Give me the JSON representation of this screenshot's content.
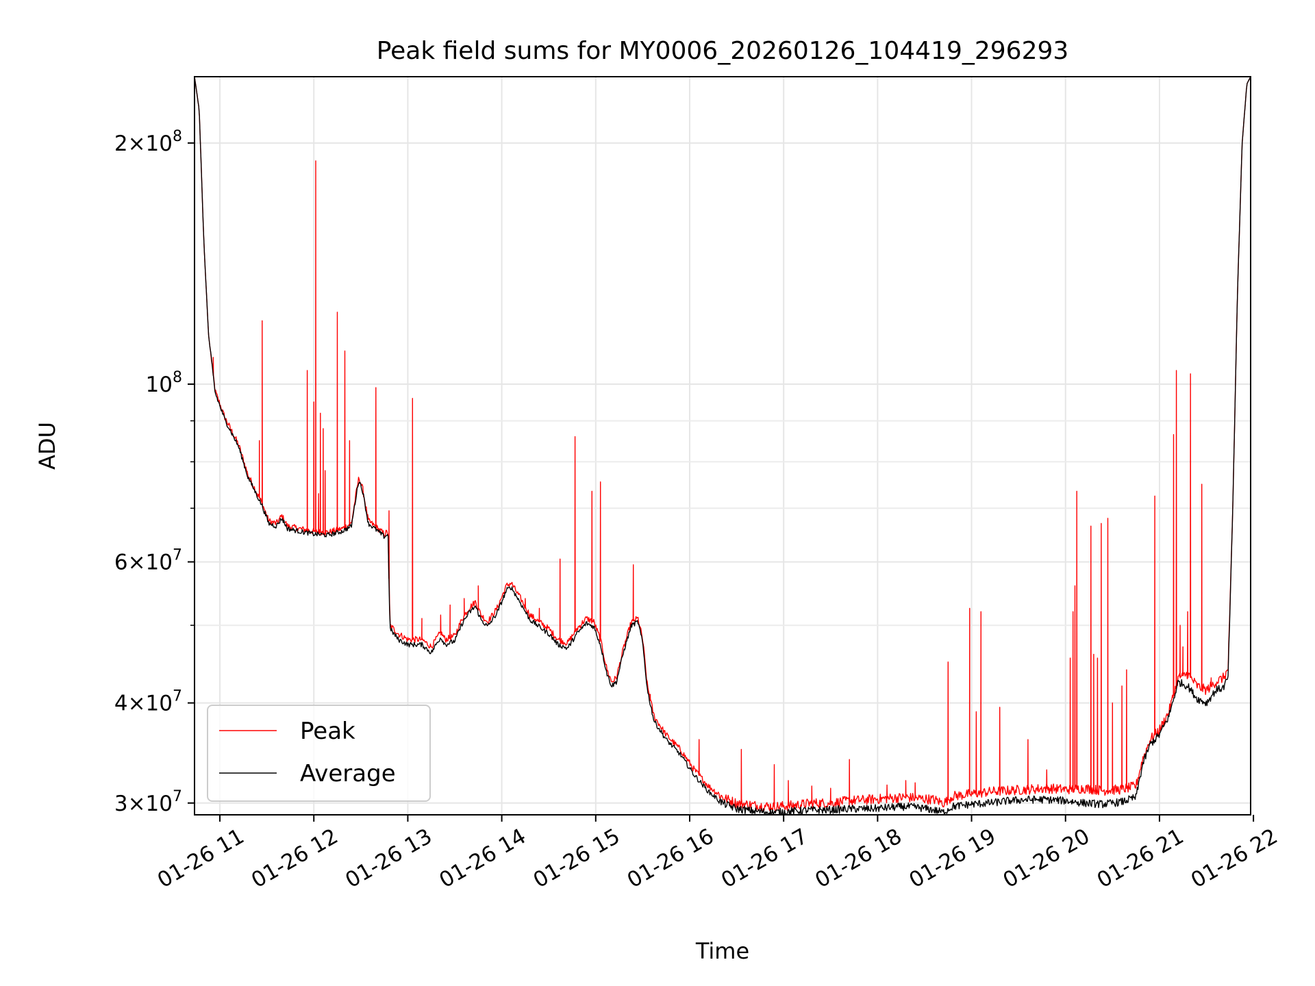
{
  "chart_data": {
    "type": "line",
    "title": "Peak field sums for MY0006_20260126_104419_296293",
    "xlabel": "Time",
    "ylabel": "ADU",
    "yscale": "log",
    "xlim": [
      10.73,
      21.97
    ],
    "ylim": [
      29000000,
      242000000
    ],
    "grid": true,
    "legend_position": "lower-left",
    "x_ticks": [
      {
        "value": 11,
        "label": "01-26 11"
      },
      {
        "value": 12,
        "label": "01-26 12"
      },
      {
        "value": 13,
        "label": "01-26 13"
      },
      {
        "value": 14,
        "label": "01-26 14"
      },
      {
        "value": 15,
        "label": "01-26 15"
      },
      {
        "value": 16,
        "label": "01-26 16"
      },
      {
        "value": 17,
        "label": "01-26 17"
      },
      {
        "value": 18,
        "label": "01-26 18"
      },
      {
        "value": 19,
        "label": "01-26 19"
      },
      {
        "value": 20,
        "label": "01-26 20"
      },
      {
        "value": 21,
        "label": "01-26 21"
      },
      {
        "value": 22,
        "label": "01-26 22"
      }
    ],
    "y_ticks": [
      {
        "value": 30000000,
        "mant": "3",
        "exp": "7"
      },
      {
        "value": 40000000,
        "mant": "4",
        "exp": "7"
      },
      {
        "value": 60000000,
        "mant": "6",
        "exp": "7"
      },
      {
        "value": 100000000,
        "mant": "",
        "exp": "8"
      },
      {
        "value": 200000000,
        "mant": "2",
        "exp": "8"
      }
    ],
    "y_minor_ticks": [
      50000000,
      70000000,
      80000000,
      90000000
    ],
    "series": [
      {
        "name": "Peak",
        "color": "#ff0000",
        "baseline": [
          [
            10.73,
            242000000
          ],
          [
            10.78,
            220000000
          ],
          [
            10.83,
            150000000
          ],
          [
            10.88,
            115000000
          ],
          [
            10.95,
            98000000
          ],
          [
            11.05,
            91000000
          ],
          [
            11.2,
            84000000
          ],
          [
            11.3,
            77000000
          ],
          [
            11.45,
            71000000
          ],
          [
            11.52,
            67500000
          ],
          [
            11.6,
            67000000
          ],
          [
            11.66,
            68500000
          ],
          [
            11.72,
            66500000
          ],
          [
            11.85,
            66000000
          ],
          [
            12.0,
            65500000
          ],
          [
            12.15,
            65300000
          ],
          [
            12.3,
            66000000
          ],
          [
            12.4,
            67000000
          ],
          [
            12.45,
            73000000
          ],
          [
            12.48,
            76500000
          ],
          [
            12.52,
            74000000
          ],
          [
            12.58,
            67500000
          ],
          [
            12.65,
            66500000
          ],
          [
            12.75,
            65000000
          ],
          [
            12.79,
            65500000
          ],
          [
            12.81,
            50000000
          ],
          [
            12.9,
            48800000
          ],
          [
            13.0,
            48000000
          ],
          [
            13.15,
            48000000
          ],
          [
            13.25,
            47000000
          ],
          [
            13.3,
            48000000
          ],
          [
            13.35,
            49000000
          ],
          [
            13.4,
            48000000
          ],
          [
            13.5,
            48500000
          ],
          [
            13.58,
            51000000
          ],
          [
            13.65,
            52500000
          ],
          [
            13.72,
            53500000
          ],
          [
            13.78,
            51500000
          ],
          [
            13.85,
            50500000
          ],
          [
            13.95,
            52500000
          ],
          [
            14.05,
            56000000
          ],
          [
            14.1,
            56500000
          ],
          [
            14.2,
            54000000
          ],
          [
            14.3,
            51500000
          ],
          [
            14.4,
            50500000
          ],
          [
            14.5,
            49500000
          ],
          [
            14.6,
            48000000
          ],
          [
            14.7,
            47500000
          ],
          [
            14.8,
            49500000
          ],
          [
            14.9,
            51000000
          ],
          [
            14.98,
            50500000
          ],
          [
            15.05,
            48000000
          ],
          [
            15.12,
            44000000
          ],
          [
            15.17,
            42500000
          ],
          [
            15.22,
            43000000
          ],
          [
            15.3,
            47000000
          ],
          [
            15.38,
            50500000
          ],
          [
            15.45,
            51000000
          ],
          [
            15.5,
            48000000
          ],
          [
            15.55,
            42000000
          ],
          [
            15.62,
            38500000
          ],
          [
            15.75,
            36500000
          ],
          [
            15.9,
            35000000
          ],
          [
            16.05,
            33000000
          ],
          [
            16.2,
            31500000
          ],
          [
            16.35,
            30500000
          ],
          [
            16.5,
            30000000
          ],
          [
            16.7,
            29800000
          ],
          [
            16.9,
            29700000
          ],
          [
            17.1,
            29800000
          ],
          [
            17.3,
            30000000
          ],
          [
            17.5,
            30000000
          ],
          [
            17.7,
            30200000
          ],
          [
            17.9,
            30300000
          ],
          [
            18.1,
            30400000
          ],
          [
            18.3,
            30500000
          ],
          [
            18.45,
            30400000
          ],
          [
            18.6,
            30300000
          ],
          [
            18.7,
            30000000
          ],
          [
            18.8,
            30600000
          ],
          [
            19.0,
            30800000
          ],
          [
            19.2,
            31000000
          ],
          [
            19.4,
            31100000
          ],
          [
            19.6,
            31200000
          ],
          [
            19.8,
            31300000
          ],
          [
            20.0,
            31200000
          ],
          [
            20.2,
            31300000
          ],
          [
            20.4,
            31100000
          ],
          [
            20.6,
            31200000
          ],
          [
            20.75,
            31500000
          ],
          [
            20.82,
            34000000
          ],
          [
            20.9,
            36000000
          ],
          [
            21.0,
            37000000
          ],
          [
            21.1,
            39000000
          ],
          [
            21.2,
            43000000
          ],
          [
            21.3,
            43500000
          ],
          [
            21.4,
            42000000
          ],
          [
            21.5,
            41500000
          ],
          [
            21.6,
            42500000
          ],
          [
            21.68,
            43000000
          ],
          [
            21.73,
            44000000
          ],
          [
            21.78,
            70000000
          ],
          [
            21.83,
            130000000
          ],
          [
            21.88,
            200000000
          ],
          [
            21.93,
            237000000
          ],
          [
            21.97,
            242000000
          ]
        ],
        "spikes": [
          [
            10.93,
            108000000
          ],
          [
            11.42,
            85000000
          ],
          [
            11.45,
            120000000
          ],
          [
            11.93,
            104000000
          ],
          [
            12.0,
            95000000
          ],
          [
            12.02,
            190000000
          ],
          [
            12.05,
            73000000
          ],
          [
            12.07,
            92000000
          ],
          [
            12.1,
            88000000
          ],
          [
            12.12,
            78000000
          ],
          [
            12.25,
            123000000
          ],
          [
            12.33,
            110000000
          ],
          [
            12.38,
            85000000
          ],
          [
            12.66,
            99000000
          ],
          [
            12.8,
            69500000
          ],
          [
            13.05,
            96000000
          ],
          [
            13.15,
            51000000
          ],
          [
            13.35,
            51500000
          ],
          [
            13.45,
            53000000
          ],
          [
            13.6,
            54000000
          ],
          [
            13.75,
            56000000
          ],
          [
            14.25,
            54000000
          ],
          [
            14.4,
            52500000
          ],
          [
            14.62,
            60500000
          ],
          [
            14.78,
            86000000
          ],
          [
            14.96,
            73500000
          ],
          [
            15.05,
            75500000
          ],
          [
            15.4,
            59500000
          ],
          [
            15.58,
            41000000
          ],
          [
            16.1,
            36000000
          ],
          [
            16.55,
            35000000
          ],
          [
            16.9,
            33500000
          ],
          [
            17.05,
            32000000
          ],
          [
            17.3,
            31500000
          ],
          [
            17.5,
            31300000
          ],
          [
            17.7,
            34000000
          ],
          [
            18.1,
            31600000
          ],
          [
            18.3,
            32000000
          ],
          [
            18.4,
            31800000
          ],
          [
            18.75,
            45000000
          ],
          [
            18.98,
            52500000
          ],
          [
            19.05,
            39000000
          ],
          [
            19.1,
            52000000
          ],
          [
            19.3,
            39500000
          ],
          [
            19.6,
            36000000
          ],
          [
            19.8,
            33000000
          ],
          [
            20.05,
            45500000
          ],
          [
            20.08,
            52000000
          ],
          [
            20.1,
            56000000
          ],
          [
            20.12,
            73500000
          ],
          [
            20.27,
            66500000
          ],
          [
            20.3,
            46000000
          ],
          [
            20.34,
            45500000
          ],
          [
            20.38,
            67000000
          ],
          [
            20.45,
            68000000
          ],
          [
            20.5,
            40000000
          ],
          [
            20.6,
            42000000
          ],
          [
            20.65,
            44000000
          ],
          [
            20.95,
            72500000
          ],
          [
            21.15,
            86500000
          ],
          [
            21.18,
            104000000
          ],
          [
            21.22,
            50000000
          ],
          [
            21.25,
            47000000
          ],
          [
            21.3,
            52000000
          ],
          [
            21.33,
            103000000
          ],
          [
            21.45,
            75000000
          ],
          [
            21.55,
            43000000
          ]
        ]
      },
      {
        "name": "Average",
        "color": "#000000",
        "baseline": [
          [
            10.73,
            242000000
          ],
          [
            10.78,
            220000000
          ],
          [
            10.83,
            150000000
          ],
          [
            10.88,
            115000000
          ],
          [
            10.95,
            97500000
          ],
          [
            11.05,
            90500000
          ],
          [
            11.2,
            83500000
          ],
          [
            11.3,
            76500000
          ],
          [
            11.45,
            70500000
          ],
          [
            11.52,
            67000000
          ],
          [
            11.6,
            66500000
          ],
          [
            11.66,
            68000000
          ],
          [
            11.72,
            66000000
          ],
          [
            11.85,
            65500000
          ],
          [
            12.0,
            65000000
          ],
          [
            12.15,
            64800000
          ],
          [
            12.3,
            65500000
          ],
          [
            12.4,
            66500000
          ],
          [
            12.45,
            72500000
          ],
          [
            12.48,
            76000000
          ],
          [
            12.52,
            73500000
          ],
          [
            12.58,
            67000000
          ],
          [
            12.65,
            66000000
          ],
          [
            12.75,
            64500000
          ],
          [
            12.79,
            65000000
          ],
          [
            12.81,
            49500000
          ],
          [
            12.9,
            48000000
          ],
          [
            13.0,
            47300000
          ],
          [
            13.15,
            47300000
          ],
          [
            13.25,
            46200000
          ],
          [
            13.3,
            47300000
          ],
          [
            13.35,
            48300000
          ],
          [
            13.4,
            47300000
          ],
          [
            13.5,
            47800000
          ],
          [
            13.58,
            50300000
          ],
          [
            13.65,
            51800000
          ],
          [
            13.72,
            52800000
          ],
          [
            13.78,
            50800000
          ],
          [
            13.85,
            49800000
          ],
          [
            13.95,
            51800000
          ],
          [
            14.05,
            55300000
          ],
          [
            14.1,
            55800000
          ],
          [
            14.2,
            53300000
          ],
          [
            14.3,
            50800000
          ],
          [
            14.4,
            49800000
          ],
          [
            14.5,
            48800000
          ],
          [
            14.6,
            47300000
          ],
          [
            14.7,
            46800000
          ],
          [
            14.8,
            48800000
          ],
          [
            14.9,
            50300000
          ],
          [
            14.98,
            49800000
          ],
          [
            15.05,
            47300000
          ],
          [
            15.12,
            43500000
          ],
          [
            15.17,
            42000000
          ],
          [
            15.22,
            42500000
          ],
          [
            15.3,
            46500000
          ],
          [
            15.38,
            50000000
          ],
          [
            15.45,
            50500000
          ],
          [
            15.5,
            47500000
          ],
          [
            15.55,
            41500000
          ],
          [
            15.62,
            38000000
          ],
          [
            15.75,
            36000000
          ],
          [
            15.9,
            34500000
          ],
          [
            16.05,
            32500000
          ],
          [
            16.2,
            31000000
          ],
          [
            16.35,
            30000000
          ],
          [
            16.5,
            29500000
          ],
          [
            16.7,
            29300000
          ],
          [
            16.9,
            29200000
          ],
          [
            17.1,
            29300000
          ],
          [
            17.3,
            29400000
          ],
          [
            17.5,
            29400000
          ],
          [
            17.7,
            29500000
          ],
          [
            17.9,
            29500000
          ],
          [
            18.1,
            29600000
          ],
          [
            18.3,
            29700000
          ],
          [
            18.45,
            29600000
          ],
          [
            18.6,
            29400000
          ],
          [
            18.7,
            29200000
          ],
          [
            18.8,
            29700000
          ],
          [
            19.0,
            29900000
          ],
          [
            19.2,
            30000000
          ],
          [
            19.4,
            30200000
          ],
          [
            19.6,
            30300000
          ],
          [
            19.8,
            30300000
          ],
          [
            20.0,
            30200000
          ],
          [
            20.2,
            30000000
          ],
          [
            20.4,
            29900000
          ],
          [
            20.6,
            30100000
          ],
          [
            20.75,
            30500000
          ],
          [
            20.82,
            33500000
          ],
          [
            20.9,
            35500000
          ],
          [
            21.0,
            36500000
          ],
          [
            21.1,
            38500000
          ],
          [
            21.2,
            42500000
          ],
          [
            21.3,
            42000000
          ],
          [
            21.4,
            40500000
          ],
          [
            21.5,
            40000000
          ],
          [
            21.6,
            41500000
          ],
          [
            21.68,
            41800000
          ],
          [
            21.73,
            43000000
          ],
          [
            21.78,
            70000000
          ],
          [
            21.83,
            130000000
          ],
          [
            21.88,
            200000000
          ],
          [
            21.93,
            237000000
          ],
          [
            21.97,
            242000000
          ]
        ]
      }
    ]
  }
}
